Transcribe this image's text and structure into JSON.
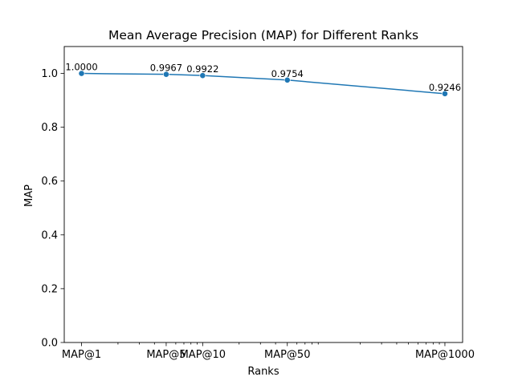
{
  "chart_data": {
    "type": "line",
    "title": "Mean Average Precision (MAP) for Different Ranks",
    "xlabel": "Ranks",
    "ylabel": "MAP",
    "x_scale": "log",
    "x": [
      1,
      5,
      10,
      50,
      1000
    ],
    "x_tick_labels": [
      "MAP@1",
      "MAP@5",
      "MAP@10",
      "MAP@50",
      "MAP@1000"
    ],
    "values": [
      1.0,
      0.9967,
      0.9922,
      0.9754,
      0.9246
    ],
    "data_labels": [
      "1.0000",
      "0.9967",
      "0.9922",
      "0.9754",
      "0.9246"
    ],
    "ylim": [
      0,
      1.1
    ],
    "xlim": [
      0.72,
      1400
    ],
    "y_ticks": [
      0.0,
      0.2,
      0.4,
      0.6,
      0.8,
      1.0
    ],
    "y_tick_labels": [
      "0.0",
      "0.2",
      "0.4",
      "0.6",
      "0.8",
      "1.0"
    ],
    "grid": false,
    "legend": "none",
    "colors": {
      "line": "#1f77b4",
      "marker": "#1f77b4",
      "axes": "#000000"
    }
  }
}
